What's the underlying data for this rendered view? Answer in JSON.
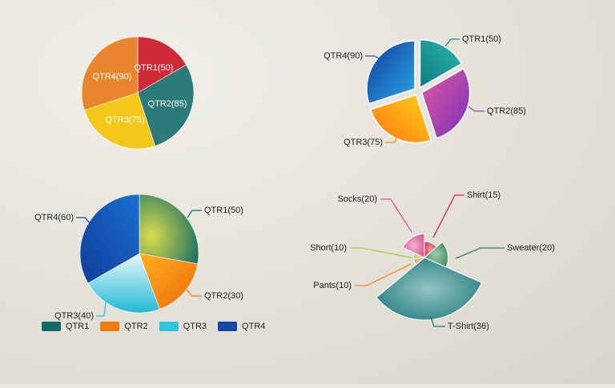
{
  "chart_data": [
    {
      "type": "pie",
      "variant": "flat",
      "categories": [
        "QTR1",
        "QTR2",
        "QTR3",
        "QTR4"
      ],
      "values": [
        50,
        85,
        75,
        90
      ],
      "labels": [
        "QTR1(50)",
        "QTR2(85)",
        "QTR3(75)",
        "QTR4(90)"
      ],
      "colors": [
        "#cf2a35",
        "#2d7a7a",
        "#f3c818",
        "#e9852c"
      ],
      "label_position": "inside"
    },
    {
      "type": "pie",
      "variant": "exploded-gradient",
      "categories": [
        "QTR1",
        "QTR2",
        "QTR3",
        "QTR4"
      ],
      "values": [
        50,
        85,
        75,
        90
      ],
      "labels": [
        "QTR1(50)",
        "QTR2(85)",
        "QTR3(75)",
        "QTR4(90)"
      ],
      "colors": [
        "#16908a",
        "#b03ab8",
        "#ff8c12",
        "#1e5fb8"
      ],
      "label_position": "outside"
    },
    {
      "type": "pie",
      "variant": "gradient",
      "categories": [
        "QTR1",
        "QTR2",
        "QTR3",
        "QTR4"
      ],
      "values": [
        50,
        30,
        40,
        60
      ],
      "labels": [
        "QTR1(50)",
        "QTR2(30)",
        "QTR3(40)",
        "QTR4(60)"
      ],
      "colors": [
        "#136a66",
        "#f07d10",
        "#2ec4dd",
        "#1646a8"
      ],
      "label_position": "outside",
      "legend": [
        "QTR1",
        "QTR2",
        "QTR3",
        "QTR4"
      ],
      "legend_position": "bottom"
    },
    {
      "type": "pie",
      "variant": "variable-radius",
      "categories": [
        "Shirt",
        "Sweater",
        "T-Shirt",
        "Pants",
        "Short",
        "Socks"
      ],
      "values": [
        15,
        20,
        36,
        10,
        10,
        20
      ],
      "labels": [
        "Shirt(15)",
        "Sweater(20)",
        "T-Shirt(36)",
        "Pants(10)",
        "Short(10)",
        "Socks(20)"
      ],
      "colors": [
        "#d8263d",
        "#2f8a52",
        "#147a7c",
        "#f08a1c",
        "#a6cc48",
        "#e0508e"
      ],
      "label_position": "outside"
    }
  ]
}
